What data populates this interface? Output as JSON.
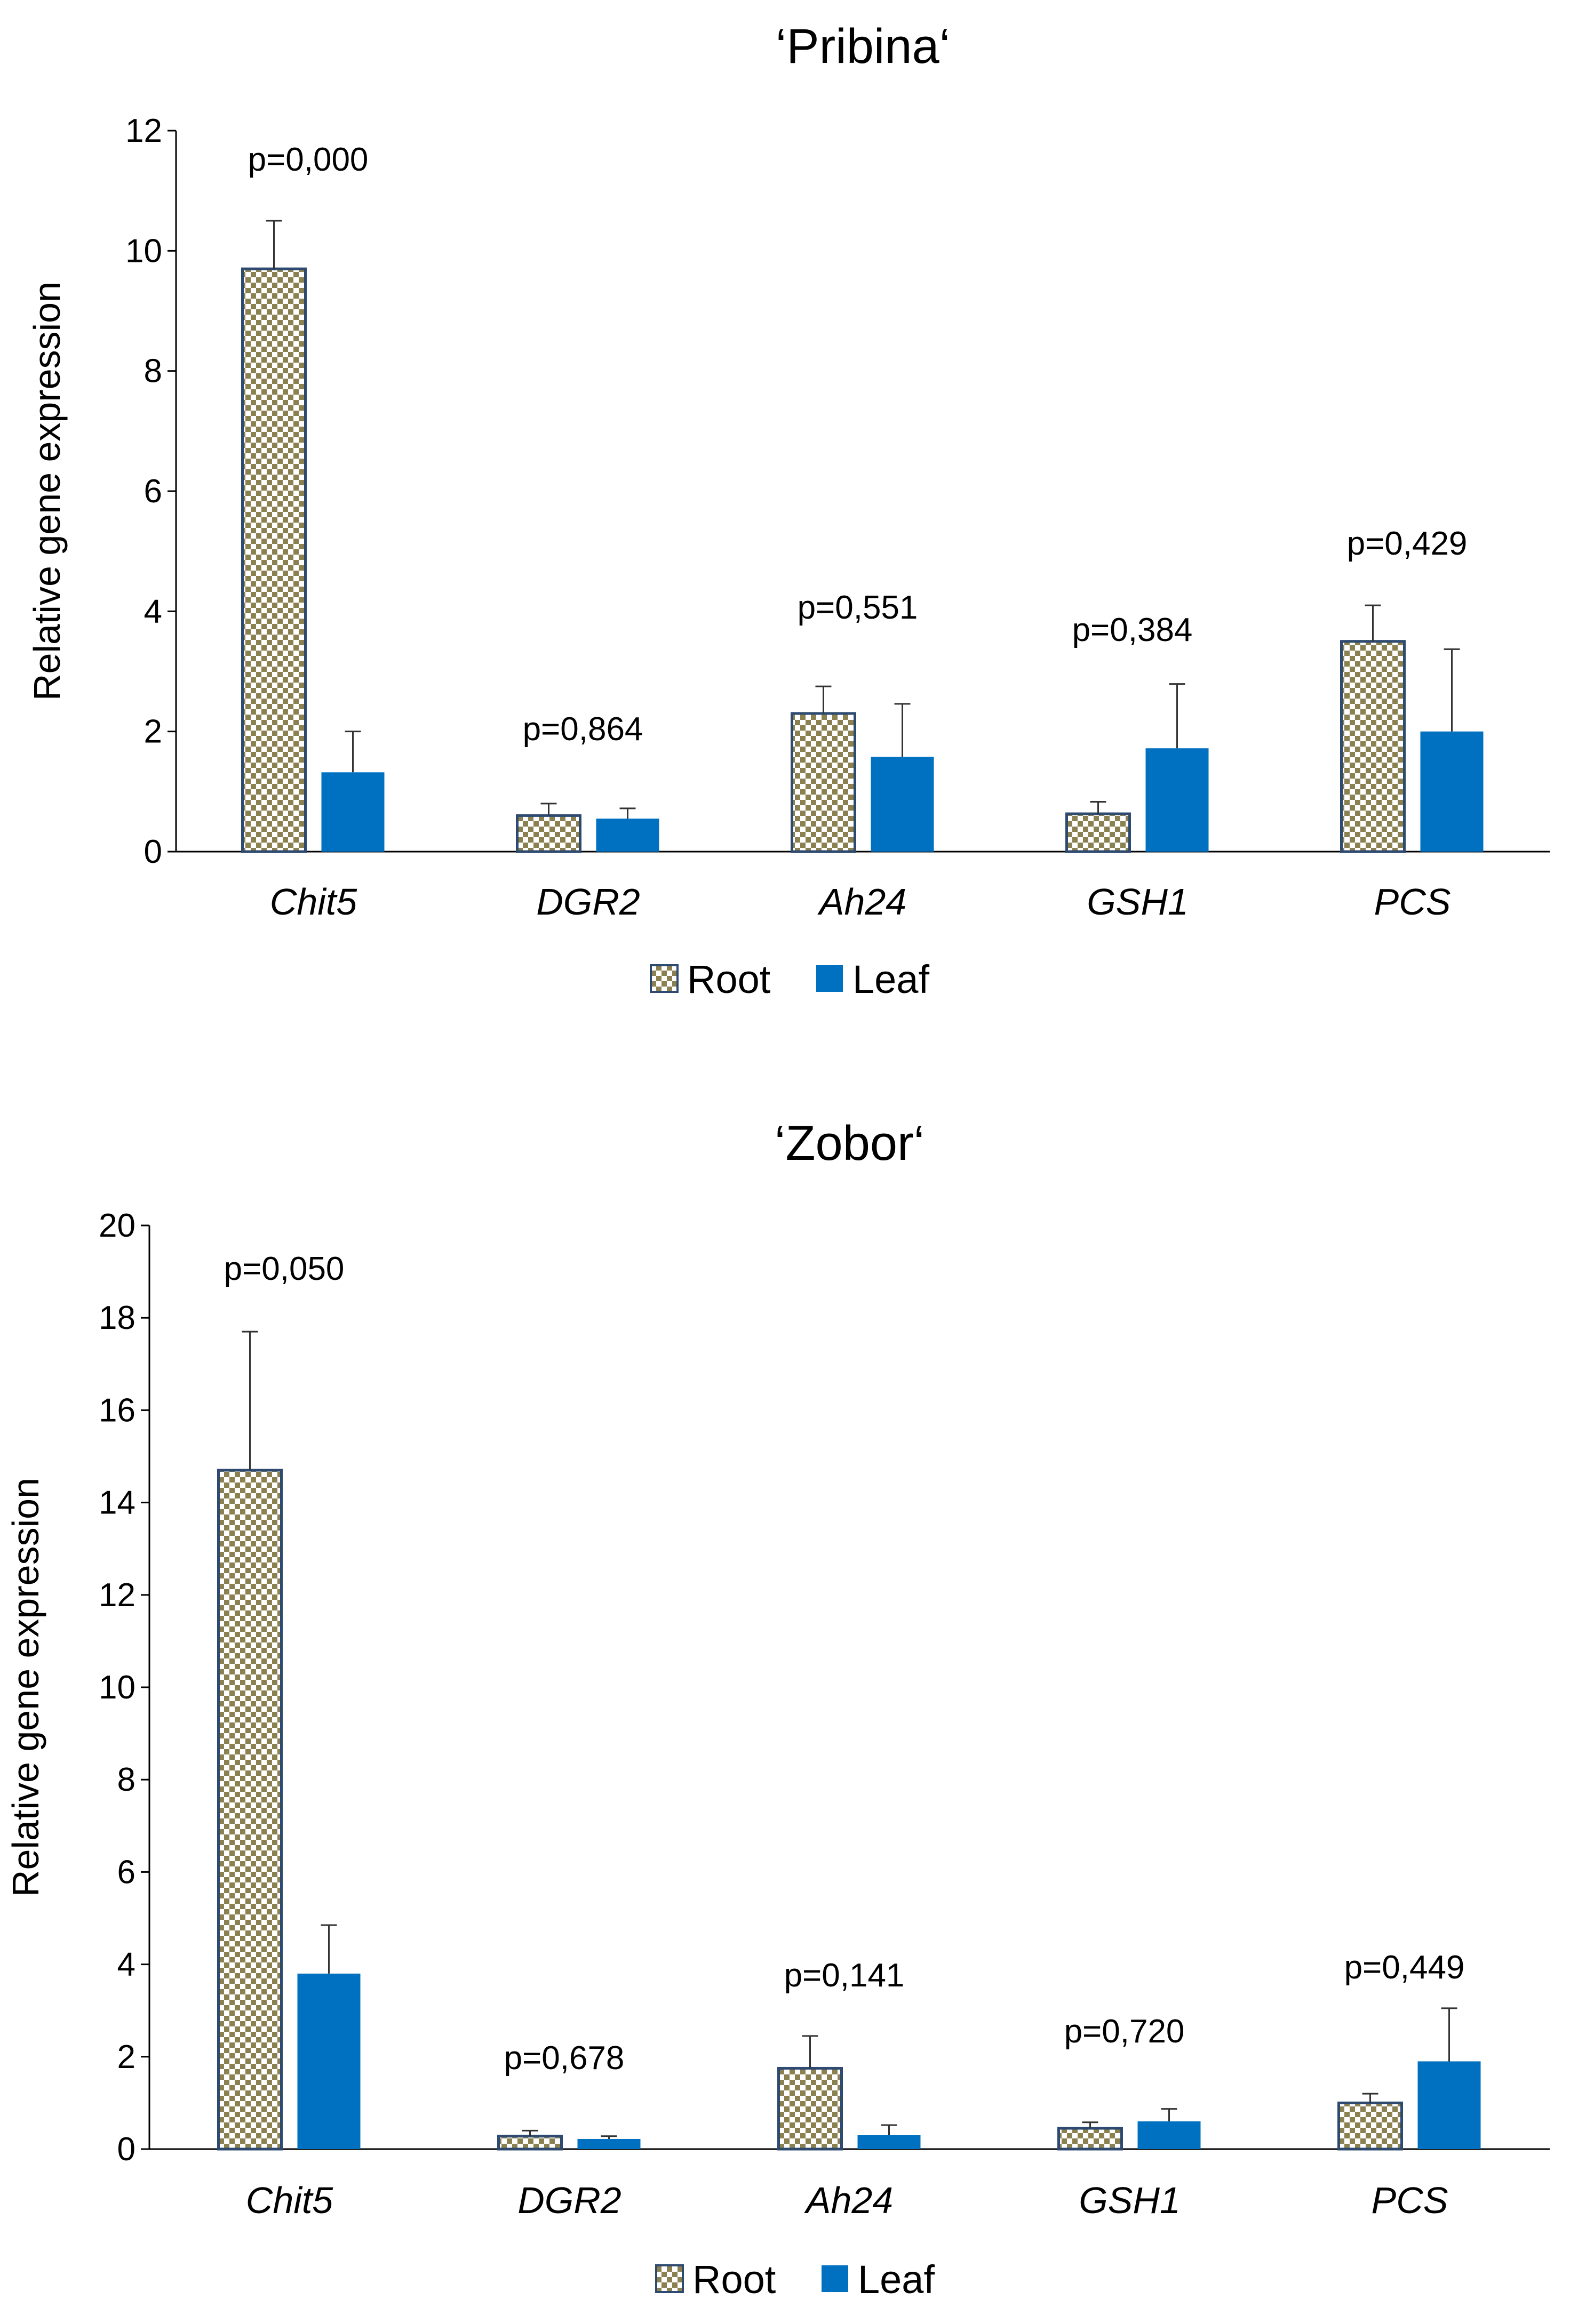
{
  "chart_data": [
    {
      "type": "bar",
      "title": "‘Pribina‘",
      "xlabel": "",
      "ylabel": "Relative gene expression",
      "ylim": [
        0,
        12
      ],
      "yticks": [
        0,
        2,
        4,
        6,
        8,
        10,
        12
      ],
      "categories": [
        "Chit5",
        "DGR2",
        "Ah24",
        "GSH1",
        "PCS"
      ],
      "series": [
        {
          "name": "Root",
          "pattern": "checker",
          "colors": [
            "#8b8050",
            "#ffffff"
          ],
          "values": [
            9.7,
            0.6,
            2.3,
            0.63,
            3.5
          ],
          "errors": [
            0.8,
            0.2,
            0.45,
            0.2,
            0.6
          ]
        },
        {
          "name": "Leaf",
          "pattern": "solid",
          "colors": [
            "#0070c0"
          ],
          "values": [
            1.32,
            0.55,
            1.58,
            1.72,
            2.0
          ],
          "errors": [
            0.68,
            0.17,
            0.88,
            1.07,
            1.37
          ]
        }
      ],
      "annotations": [
        "p=0,000",
        "p=0,864",
        "p=0,551",
        "p=0,384",
        "p=0,429"
      ],
      "legend": "bottom"
    },
    {
      "type": "bar",
      "title": "‘Zobor‘",
      "xlabel": "",
      "ylabel": "Relative gene expression",
      "ylim": [
        0,
        20
      ],
      "yticks": [
        0,
        2,
        4,
        6,
        8,
        10,
        12,
        14,
        16,
        18,
        20
      ],
      "categories": [
        "Chit5",
        "DGR2",
        "Ah24",
        "GSH1",
        "PCS"
      ],
      "series": [
        {
          "name": "Root",
          "pattern": "checker",
          "colors": [
            "#8b8050",
            "#ffffff"
          ],
          "values": [
            14.7,
            0.28,
            1.75,
            0.45,
            1.0
          ],
          "errors": [
            3.0,
            0.12,
            0.7,
            0.13,
            0.2
          ]
        },
        {
          "name": "Leaf",
          "pattern": "solid",
          "colors": [
            "#0070c0"
          ],
          "values": [
            3.8,
            0.22,
            0.3,
            0.6,
            1.9
          ],
          "errors": [
            1.05,
            0.06,
            0.22,
            0.27,
            1.15
          ]
        }
      ],
      "annotations": [
        "p=0,050",
        "p=0,678",
        "p=0,141",
        "p=0,720",
        "p=0,449"
      ],
      "legend": "bottom"
    }
  ]
}
